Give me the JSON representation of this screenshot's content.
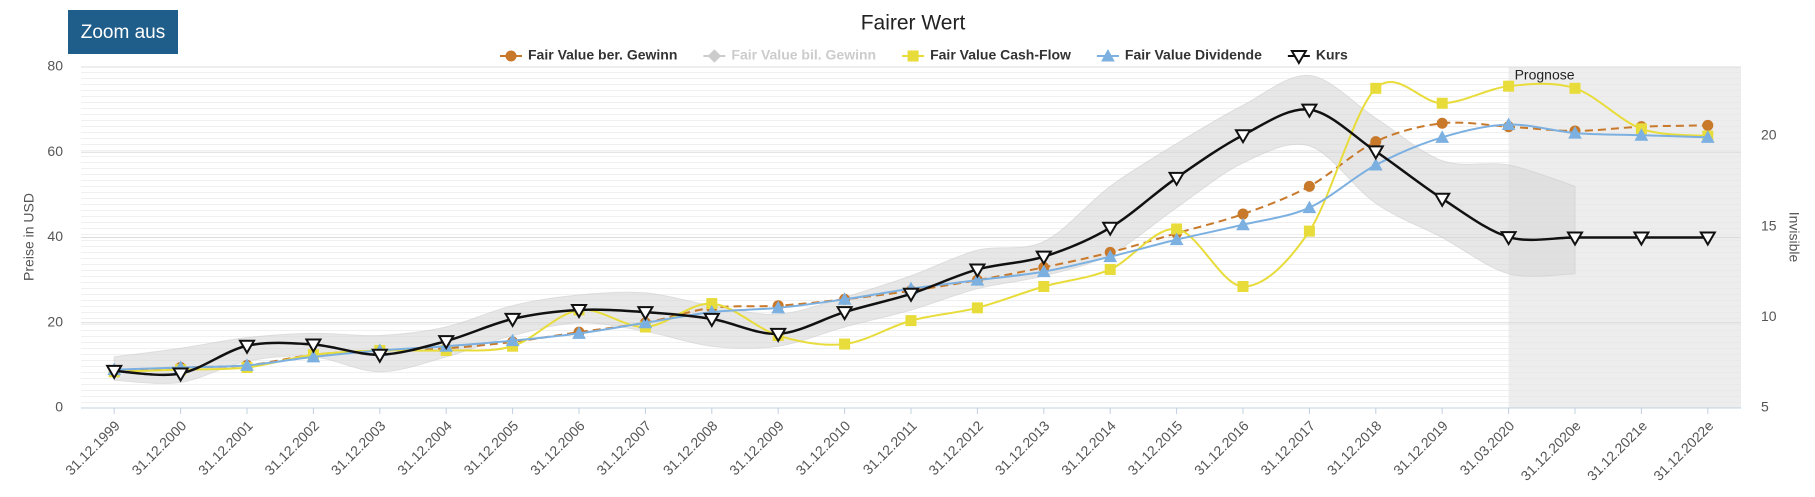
{
  "button": "Zoom aus",
  "chart_data": {
    "type": "line",
    "title": "Fairer Wert",
    "y_label": "Preise in USD",
    "y2_label": "Invisible",
    "categories": [
      "31.12.1999",
      "31.12.2000",
      "31.12.2001",
      "31.12.2002",
      "31.12.2003",
      "31.12.2004",
      "31.12.2005",
      "31.12.2006",
      "31.12.2007",
      "31.12.2008",
      "31.12.2009",
      "31.12.2010",
      "31.12.2011",
      "31.12.2012",
      "31.12.2013",
      "31.12.2014",
      "31.12.2015",
      "31.12.2016",
      "31.12.2017",
      "31.12.2018",
      "31.12.2019",
      "31.03.2020",
      "31.12.2020e",
      "31.12.2021e",
      "31.12.2022e"
    ],
    "ylim": [
      0,
      80
    ],
    "yticks": [
      0,
      20,
      40,
      60,
      80
    ],
    "y2lim": [
      5,
      23.8
    ],
    "y2ticks": [
      5,
      10,
      15,
      20
    ],
    "grid": true,
    "annotation": {
      "label": "Prognose",
      "from": "31.03.2020"
    },
    "range": {
      "color": "#d8d8d8",
      "upper": [
        12,
        14,
        16.5,
        17.5,
        17,
        19,
        24,
        26.5,
        27,
        24,
        22,
        26,
        31,
        37,
        39,
        52,
        62,
        71,
        78,
        68,
        58,
        57,
        52,
        null,
        null
      ],
      "lower": [
        6.5,
        6,
        11,
        12,
        8.5,
        12,
        17,
        20,
        18,
        14.5,
        14.5,
        19,
        23,
        28,
        31,
        36,
        47,
        57.5,
        61.5,
        48,
        40,
        31.5,
        31.5,
        null,
        null
      ]
    },
    "series": [
      {
        "name": "Fair Value ber. Gewinn",
        "color": "#c8792a",
        "marker": "circle",
        "dash": true,
        "visible": true,
        "values": [
          8.5,
          9.5,
          10,
          12.5,
          13.5,
          14,
          15.5,
          17.8,
          20,
          23.5,
          24,
          25.5,
          27.5,
          30,
          33,
          36.5,
          41,
          45.5,
          52,
          62.5,
          66.8,
          66,
          65,
          66,
          66.3
        ]
      },
      {
        "name": "Fair Value bil. Gewinn",
        "color": "#cccccc",
        "marker": "diamond",
        "dash": false,
        "visible": false,
        "values": [
          null,
          null,
          null,
          null,
          null,
          null,
          null,
          null,
          null,
          null,
          null,
          null,
          null,
          null,
          null,
          null,
          null,
          null,
          null,
          null,
          null,
          null,
          null,
          null,
          null
        ]
      },
      {
        "name": "Fair Value Cash-Flow",
        "color": "#e8dc3a",
        "marker": "square",
        "dash": false,
        "visible": true,
        "values": [
          8.5,
          9,
          9.5,
          12.5,
          13.5,
          13.5,
          14.5,
          23,
          19,
          24.5,
          17,
          15,
          20.5,
          23.5,
          28.5,
          32.5,
          42,
          28.5,
          41.5,
          75,
          71.5,
          75.5,
          75,
          65.5,
          63.8
        ]
      },
      {
        "name": "Fair Value Dividende",
        "color": "#7cb0e0",
        "marker": "triangle",
        "dash": false,
        "visible": true,
        "values": [
          9,
          9.5,
          10,
          12,
          13.5,
          14.5,
          15.8,
          17.5,
          20,
          22.5,
          23.5,
          25.5,
          28,
          30,
          32,
          35.5,
          39.5,
          43,
          47,
          57,
          63.5,
          66.5,
          64.5,
          64,
          63.5
        ]
      },
      {
        "name": "Kurs",
        "color": "#111111",
        "marker": "triangle-down",
        "dash": false,
        "visible": true,
        "values": [
          8.7,
          8.1,
          14.6,
          14.9,
          12.5,
          15.7,
          20.9,
          23,
          22.5,
          20.9,
          17.4,
          22.5,
          26.8,
          32.5,
          35.5,
          42.3,
          54,
          64,
          70,
          60.2,
          49.1,
          40.1,
          40,
          40,
          40
        ]
      }
    ]
  }
}
